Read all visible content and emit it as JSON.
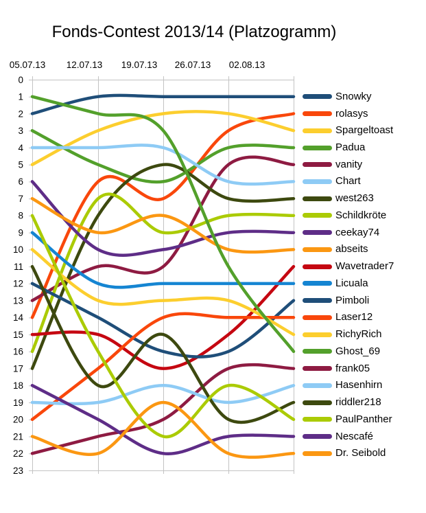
{
  "chart_data": {
    "type": "line",
    "subtype": "bump-chart",
    "title": "Fonds-Contest 2013/14 (Platzogramm)",
    "x": [
      "05.07.13",
      "12.07.13",
      "19.07.13",
      "26.07.13",
      "02.08.13"
    ],
    "xlabel": "",
    "ylabel": "",
    "y_axis": {
      "min": 0,
      "max": 23,
      "step": 1,
      "direction": "down",
      "meaning": "Platz (rank), 1 = best"
    },
    "grid": "vertical-only",
    "grid_color": "#C3C3C3",
    "text_color": "#000000",
    "smooth": true,
    "legend_position": "right",
    "series": [
      {
        "name": "Snowky",
        "color": "#1F4E79",
        "ranks": [
          2,
          1,
          1,
          1,
          1
        ]
      },
      {
        "name": "rolasys",
        "color": "#F9470B",
        "ranks": [
          14,
          6,
          7,
          3,
          2
        ]
      },
      {
        "name": "Spargeltoast",
        "color": "#FCCE2E",
        "ranks": [
          5,
          3,
          2,
          2,
          3
        ]
      },
      {
        "name": "Padua",
        "color": "#53A02B",
        "ranks": [
          3,
          5,
          6,
          4,
          4
        ]
      },
      {
        "name": "vanity",
        "color": "#8E1B42",
        "ranks": [
          13,
          11,
          11,
          5,
          5
        ]
      },
      {
        "name": "Chart",
        "color": "#8ECBF5",
        "ranks": [
          4,
          4,
          4,
          6,
          6
        ]
      },
      {
        "name": "west263",
        "color": "#3D490F",
        "ranks": [
          17,
          8,
          5,
          7,
          7
        ]
      },
      {
        "name": "Schildkröte",
        "color": "#ABCB05",
        "ranks": [
          16,
          7,
          9,
          8,
          8
        ]
      },
      {
        "name": "ceekay74",
        "color": "#5E2D87",
        "ranks": [
          6,
          10,
          10,
          9,
          9
        ]
      },
      {
        "name": "abseits",
        "color": "#FB9712",
        "ranks": [
          7,
          9,
          8,
          10,
          10
        ]
      },
      {
        "name": "Wavetrader7",
        "color": "#C50711",
        "ranks": [
          15,
          15,
          17,
          15,
          11
        ]
      },
      {
        "name": "Licuala",
        "color": "#1585D2",
        "ranks": [
          9,
          12,
          12,
          12,
          12
        ]
      },
      {
        "name": "Pimboli",
        "color": "#1F4E79",
        "ranks": [
          12,
          14,
          16,
          16,
          13
        ]
      },
      {
        "name": "Laser12",
        "color": "#F9470B",
        "ranks": [
          20,
          17,
          14,
          14,
          14
        ]
      },
      {
        "name": "RichyRich",
        "color": "#FCCE2E",
        "ranks": [
          10,
          13,
          13,
          13,
          15
        ]
      },
      {
        "name": "Ghost_69",
        "color": "#53A02B",
        "ranks": [
          1,
          2,
          3,
          11,
          16
        ]
      },
      {
        "name": "frank05",
        "color": "#8E1B42",
        "ranks": [
          22,
          21,
          20,
          17,
          17
        ]
      },
      {
        "name": "Hasenhirn",
        "color": "#8ECBF5",
        "ranks": [
          19,
          19,
          18,
          19,
          18
        ]
      },
      {
        "name": "riddler218",
        "color": "#3D490F",
        "ranks": [
          11,
          18,
          15,
          20,
          19
        ]
      },
      {
        "name": "PaulPanther",
        "color": "#ABCB05",
        "ranks": [
          8,
          16,
          21,
          18,
          20
        ]
      },
      {
        "name": "Nescafé",
        "color": "#5E2D87",
        "ranks": [
          18,
          20,
          22,
          21,
          21
        ]
      },
      {
        "name": "Dr. Seibold",
        "color": "#FB9712",
        "ranks": [
          21,
          22,
          19,
          22,
          22
        ]
      }
    ]
  }
}
